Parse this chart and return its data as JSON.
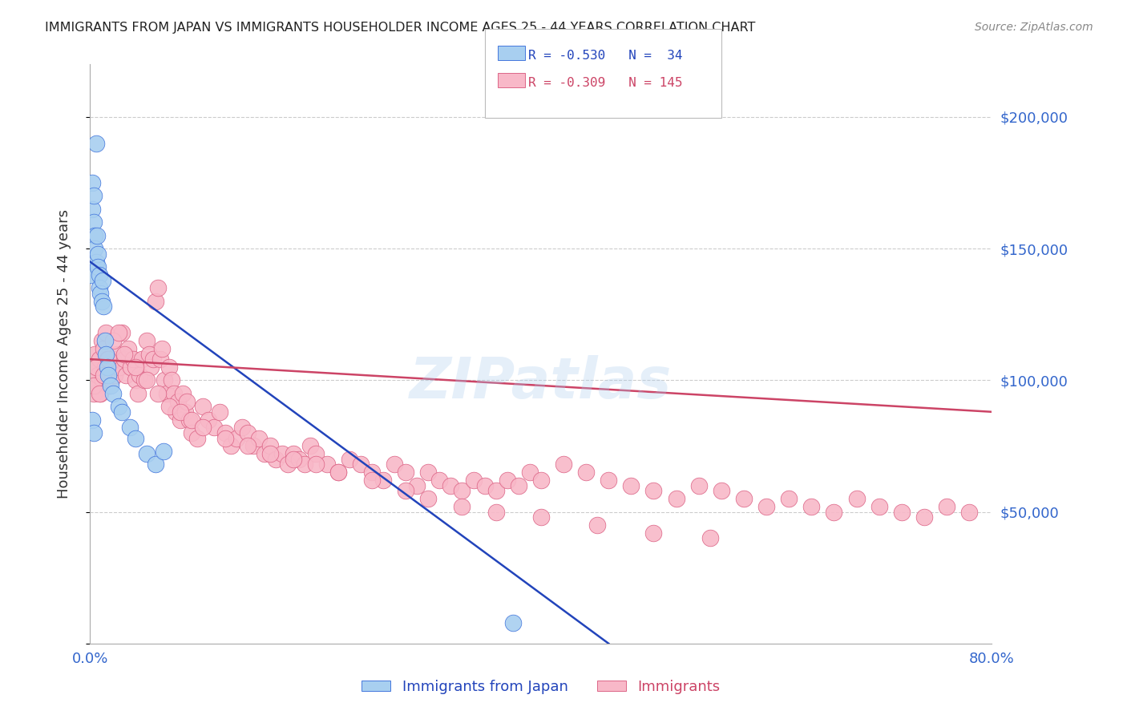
{
  "title": "IMMIGRANTS FROM JAPAN VS IMMIGRANTS HOUSEHOLDER INCOME AGES 25 - 44 YEARS CORRELATION CHART",
  "source": "Source: ZipAtlas.com",
  "ylabel": "Householder Income Ages 25 - 44 years",
  "watermark": "ZIPatlas",
  "legend_blue_label": "Immigrants from Japan",
  "legend_pink_label": "Immigrants",
  "legend_blue_R": "R = -0.530",
  "legend_blue_N": "N =  34",
  "legend_pink_R": "R = -0.309",
  "legend_pink_N": "N = 145",
  "y_ticks": [
    0,
    50000,
    100000,
    150000,
    200000
  ],
  "x_range": [
    0,
    0.8
  ],
  "y_range": [
    0,
    220000
  ],
  "background_color": "#ffffff",
  "blue_fill_color": "#a8cff0",
  "blue_edge_color": "#4477dd",
  "blue_line_color": "#2244bb",
  "pink_fill_color": "#f8b8c8",
  "pink_edge_color": "#dd6688",
  "pink_line_color": "#cc4466",
  "grid_color": "#cccccc",
  "axis_color": "#aaaaaa",
  "label_color": "#3366cc",
  "title_color": "#222222",
  "blue_scatter_x": [
    0.001,
    0.002,
    0.002,
    0.003,
    0.003,
    0.004,
    0.004,
    0.005,
    0.005,
    0.006,
    0.007,
    0.007,
    0.008,
    0.008,
    0.009,
    0.01,
    0.011,
    0.012,
    0.013,
    0.014,
    0.015,
    0.016,
    0.018,
    0.02,
    0.025,
    0.028,
    0.035,
    0.04,
    0.05,
    0.058,
    0.065,
    0.375,
    0.002,
    0.003
  ],
  "blue_scatter_y": [
    140000,
    175000,
    165000,
    170000,
    160000,
    155000,
    150000,
    145000,
    190000,
    155000,
    148000,
    143000,
    140000,
    135000,
    133000,
    130000,
    138000,
    128000,
    115000,
    110000,
    105000,
    102000,
    98000,
    95000,
    90000,
    88000,
    82000,
    78000,
    72000,
    68000,
    73000,
    8000,
    85000,
    80000
  ],
  "pink_scatter_x": [
    0.002,
    0.003,
    0.004,
    0.005,
    0.006,
    0.007,
    0.008,
    0.009,
    0.01,
    0.011,
    0.012,
    0.013,
    0.014,
    0.015,
    0.016,
    0.017,
    0.018,
    0.019,
    0.02,
    0.022,
    0.024,
    0.026,
    0.028,
    0.03,
    0.032,
    0.034,
    0.036,
    0.038,
    0.04,
    0.042,
    0.044,
    0.046,
    0.048,
    0.05,
    0.052,
    0.054,
    0.056,
    0.058,
    0.06,
    0.062,
    0.064,
    0.066,
    0.068,
    0.07,
    0.072,
    0.074,
    0.076,
    0.078,
    0.08,
    0.082,
    0.084,
    0.086,
    0.088,
    0.09,
    0.095,
    0.1,
    0.105,
    0.11,
    0.115,
    0.12,
    0.125,
    0.13,
    0.135,
    0.14,
    0.145,
    0.15,
    0.155,
    0.16,
    0.165,
    0.17,
    0.175,
    0.18,
    0.185,
    0.19,
    0.195,
    0.2,
    0.21,
    0.22,
    0.23,
    0.24,
    0.25,
    0.26,
    0.27,
    0.28,
    0.29,
    0.3,
    0.31,
    0.32,
    0.33,
    0.34,
    0.35,
    0.36,
    0.37,
    0.38,
    0.39,
    0.4,
    0.42,
    0.44,
    0.46,
    0.48,
    0.5,
    0.52,
    0.54,
    0.56,
    0.58,
    0.6,
    0.62,
    0.64,
    0.66,
    0.68,
    0.7,
    0.72,
    0.74,
    0.76,
    0.78,
    0.003,
    0.005,
    0.008,
    0.012,
    0.016,
    0.02,
    0.025,
    0.03,
    0.04,
    0.05,
    0.06,
    0.07,
    0.08,
    0.09,
    0.1,
    0.12,
    0.14,
    0.16,
    0.18,
    0.2,
    0.22,
    0.25,
    0.28,
    0.3,
    0.33,
    0.36,
    0.4,
    0.45,
    0.5,
    0.55
  ],
  "pink_scatter_y": [
    100000,
    95000,
    110000,
    105000,
    98000,
    102000,
    108000,
    95000,
    115000,
    100000,
    112000,
    105000,
    118000,
    108000,
    105000,
    98000,
    105000,
    100000,
    108000,
    102000,
    110000,
    105000,
    118000,
    108000,
    102000,
    112000,
    105000,
    108000,
    100000,
    95000,
    102000,
    108000,
    100000,
    115000,
    110000,
    105000,
    108000,
    130000,
    135000,
    108000,
    112000,
    100000,
    95000,
    105000,
    100000,
    95000,
    88000,
    92000,
    85000,
    95000,
    88000,
    92000,
    85000,
    80000,
    78000,
    90000,
    85000,
    82000,
    88000,
    80000,
    75000,
    78000,
    82000,
    80000,
    75000,
    78000,
    72000,
    75000,
    70000,
    72000,
    68000,
    72000,
    70000,
    68000,
    75000,
    72000,
    68000,
    65000,
    70000,
    68000,
    65000,
    62000,
    68000,
    65000,
    60000,
    65000,
    62000,
    60000,
    58000,
    62000,
    60000,
    58000,
    62000,
    60000,
    65000,
    62000,
    68000,
    65000,
    62000,
    60000,
    58000,
    55000,
    60000,
    58000,
    55000,
    52000,
    55000,
    52000,
    50000,
    55000,
    52000,
    50000,
    48000,
    52000,
    50000,
    98000,
    105000,
    95000,
    102000,
    108000,
    115000,
    118000,
    110000,
    105000,
    100000,
    95000,
    90000,
    88000,
    85000,
    82000,
    78000,
    75000,
    72000,
    70000,
    68000,
    65000,
    62000,
    58000,
    55000,
    52000,
    50000,
    48000,
    45000,
    42000,
    40000
  ],
  "blue_trend_x": [
    0.0,
    0.46
  ],
  "blue_trend_y": [
    145000,
    0
  ],
  "pink_trend_x": [
    0.0,
    0.8
  ],
  "pink_trend_y": [
    108000,
    88000
  ]
}
